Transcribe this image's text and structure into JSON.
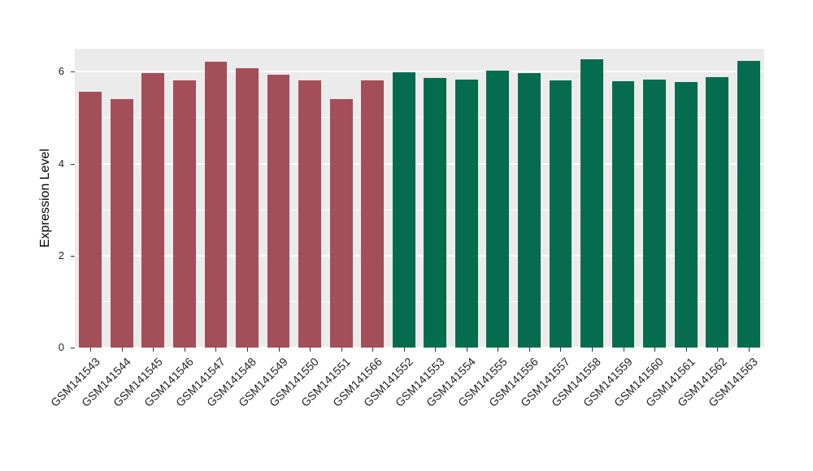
{
  "chart_data": {
    "type": "bar",
    "title": "",
    "xlabel": "",
    "ylabel": "Expression Level",
    "ylim": [
      0,
      6.5
    ],
    "yticks": [
      0,
      2,
      4,
      6
    ],
    "yticks_minor": [
      1,
      3,
      5
    ],
    "grid": true,
    "legend": "none",
    "panel_background": "#EBEBEB",
    "grid_color": "#FFFFFF",
    "categories": [
      "GSM141543",
      "GSM141544",
      "GSM141545",
      "GSM141546",
      "GSM141547",
      "GSM141548",
      "GSM141549",
      "GSM141550",
      "GSM141551",
      "GSM141566",
      "GSM141552",
      "GSM141553",
      "GSM141554",
      "GSM141555",
      "GSM141556",
      "GSM141557",
      "GSM141558",
      "GSM141559",
      "GSM141560",
      "GSM141561",
      "GSM141562",
      "GSM141563"
    ],
    "values": [
      5.57,
      5.41,
      5.97,
      5.81,
      6.22,
      6.08,
      5.94,
      5.81,
      5.41,
      5.81,
      5.99,
      5.87,
      5.83,
      6.03,
      5.97,
      5.81,
      6.27,
      5.8,
      5.83,
      5.78,
      5.88,
      6.24
    ],
    "groups": [
      "group1",
      "group1",
      "group1",
      "group1",
      "group1",
      "group1",
      "group1",
      "group1",
      "group1",
      "group1",
      "group2",
      "group2",
      "group2",
      "group2",
      "group2",
      "group2",
      "group2",
      "group2",
      "group2",
      "group2",
      "group2",
      "group2"
    ],
    "colors": {
      "group1": "#A34E58",
      "group2": "#066C4F"
    }
  }
}
